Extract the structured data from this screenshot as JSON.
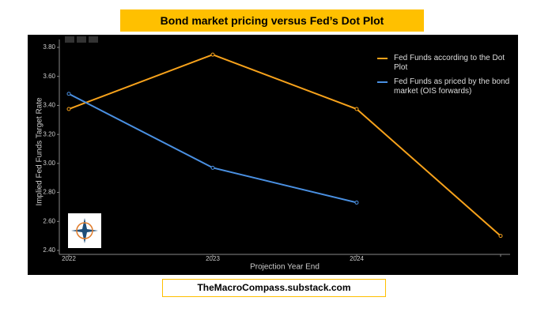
{
  "chart_data": {
    "type": "line",
    "title": "Bond market pricing versus Fed’s Dot Plot",
    "footer": "TheMacroCompass.substack.com",
    "x_label": "Projection Year End",
    "y_label": "Implied Fed Funds Target Rate",
    "categories": [
      "2022",
      "2023",
      "2024",
      null
    ],
    "series": [
      {
        "name": "Fed Funds according to the Dot Plot",
        "color": "#f7a21b",
        "values": [
          3.375,
          3.75,
          3.375,
          2.5
        ]
      },
      {
        "name": "Fed Funds as priced by the bond market (OIS forwards)",
        "color": "#4a90e2",
        "values": [
          3.48,
          2.97,
          2.73,
          null
        ]
      }
    ],
    "ylim": [
      2.4,
      3.8
    ],
    "yticks": [
      {
        "value": 2.4,
        "label": "2.40"
      },
      {
        "value": 2.6,
        "label": "2.60"
      },
      {
        "value": 2.8,
        "label": "2.80"
      },
      {
        "value": 3.0,
        "label": "3.00"
      },
      {
        "value": 3.2,
        "label": "3.20"
      },
      {
        "value": 3.4,
        "label": "3.40"
      },
      {
        "value": 3.6,
        "label": "3.60"
      },
      {
        "value": 3.8,
        "label": "3.80"
      }
    ]
  }
}
